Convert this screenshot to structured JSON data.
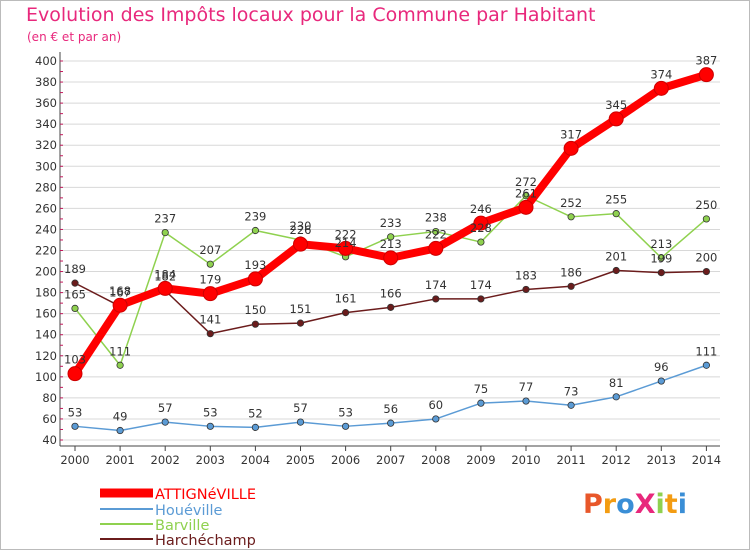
{
  "title": "Evolution des Impôts locaux pour la Commune par Habitant",
  "subtitle": "(en € et par an)",
  "logo_text": "ProXiti",
  "colors": {
    "title": "#e8287c",
    "axis_text": "#333333",
    "grid": "#d8d8d8",
    "attignéville": "#ff0000",
    "houéville": "#5b9bd5",
    "barville": "#8fd14f",
    "harchéchamp": "#6b1c1c"
  },
  "chart_data": {
    "type": "line",
    "title": "Evolution des Impôts locaux pour la Commune par Habitant",
    "subtitle": "(en € et par an)",
    "xlabel": "",
    "ylabel": "",
    "categories": [
      "2000",
      "2001",
      "2002",
      "2003",
      "2004",
      "2005",
      "2006",
      "2007",
      "2008",
      "2009",
      "2010",
      "2011",
      "2012",
      "2013",
      "2014"
    ],
    "ylim": [
      40,
      400
    ],
    "yticks": [
      40,
      60,
      80,
      100,
      120,
      140,
      160,
      180,
      200,
      220,
      240,
      260,
      280,
      300,
      320,
      340,
      360,
      380,
      400
    ],
    "grid": true,
    "legend_position": "bottom-left",
    "series": [
      {
        "name": "ATTIGNéVILLE",
        "color": "#ff0000",
        "width": 8,
        "marker": 7,
        "values": [
          103,
          168,
          184,
          179,
          193,
          226,
          222,
          213,
          222,
          246,
          261,
          317,
          345,
          374,
          387
        ],
        "labels": [
          "103",
          "168",
          "184",
          "179",
          "193",
          "226",
          "222",
          "213",
          "222",
          "246",
          "261",
          "317",
          "345",
          "374",
          "387"
        ]
      },
      {
        "name": "Houéville",
        "color": "#5b9bd5",
        "width": 1.5,
        "marker": 3.2,
        "values": [
          53,
          49,
          57,
          53,
          52,
          57,
          53,
          56,
          60,
          75,
          77,
          73,
          81,
          96,
          111
        ],
        "labels": [
          "53",
          "49",
          "57",
          "53",
          "52",
          "57",
          "53",
          "56",
          "60",
          "75",
          "77",
          "73",
          "81",
          "96",
          "111"
        ]
      },
      {
        "name": "Barville",
        "color": "#8fd14f",
        "width": 1.5,
        "marker": 3.2,
        "values": [
          165,
          111,
          237,
          207,
          239,
          230,
          214,
          233,
          238,
          228,
          272,
          252,
          255,
          213,
          250
        ],
        "labels": [
          "165",
          "111",
          "237",
          "207",
          "239",
          "230",
          "214",
          "233",
          "238",
          "228",
          "272",
          "252",
          "255",
          "213",
          "250"
        ]
      },
      {
        "name": "Harchéchamp",
        "color": "#6b1c1c",
        "width": 1.5,
        "marker": 3.2,
        "values": [
          189,
          167,
          182,
          141,
          150,
          151,
          161,
          166,
          174,
          174,
          183,
          186,
          201,
          199,
          200
        ],
        "labels": [
          "189",
          "167",
          "182",
          "141",
          "150",
          "151",
          "161",
          "166",
          "174",
          "174",
          "183",
          "186",
          "201",
          "199",
          "200"
        ]
      }
    ]
  }
}
